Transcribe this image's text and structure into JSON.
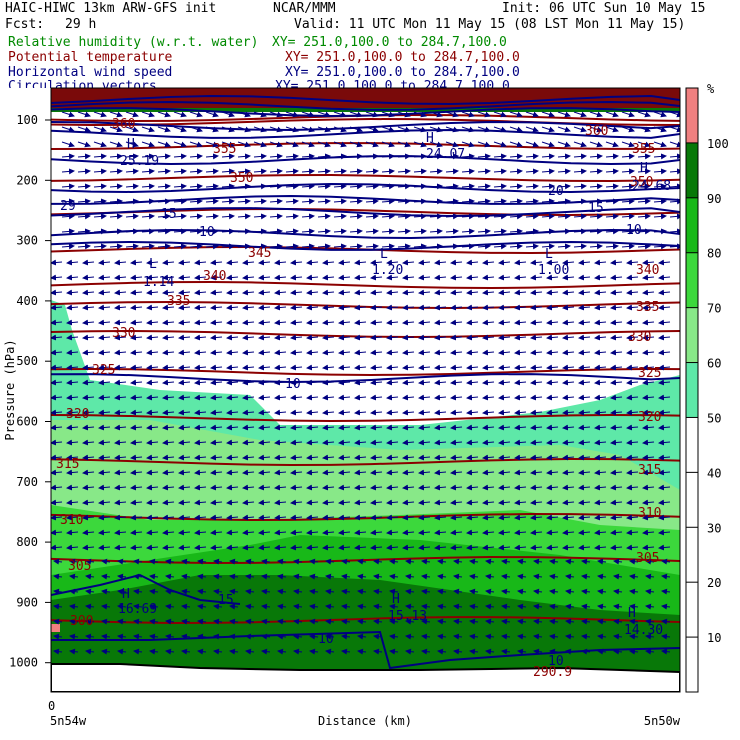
{
  "header": {
    "model": "HAIC-HIWC 13km ARW-GFS init",
    "center": "NCAR/MMM",
    "init": "Init: 06 UTC Sun 10 May 15",
    "fcst_label": "Fcst:",
    "fcst_value": "29 h",
    "valid": "Valid: 11 UTC Mon 11 May 15 (08 LST Mon 11 May 15)"
  },
  "fields": [
    {
      "name": "Relative humidity (w.r.t. water)",
      "xy": "XY= 251.0,100.0 to 284.7,100.0",
      "color": "#008a00"
    },
    {
      "name": "Potential temperature",
      "xy": "XY= 251.0,100.0 to 284.7,100.0",
      "color": "#8b0000"
    },
    {
      "name": "Horizontal wind speed",
      "xy": "XY= 251.0,100.0 to 284.7,100.0",
      "color": "#000080"
    },
    {
      "name": "Circulation vectors",
      "xy": "XY= 251.0,100.0 to 284.7,100.0",
      "color": "#000080"
    }
  ],
  "chart_data": {
    "type": "heatmap",
    "ylabel": "Pressure (hPa)",
    "xlabel": "Distance (km)",
    "x_origin_label": "0",
    "x_left_label": "5n54w",
    "x_right_label": "5n50w",
    "y_ticks": [
      100,
      200,
      300,
      400,
      500,
      600,
      700,
      800,
      900,
      1000
    ],
    "ylim": [
      1000,
      75
    ],
    "colorbar": {
      "unit": "%",
      "ticks": [
        10,
        20,
        30,
        40,
        50,
        60,
        70,
        80,
        90,
        100
      ],
      "levels": [
        {
          "from": 50,
          "to": 60,
          "color": "#5ee8a8"
        },
        {
          "from": 60,
          "to": 70,
          "color": "#88e888"
        },
        {
          "from": 70,
          "to": 80,
          "color": "#3cd83c"
        },
        {
          "from": 80,
          "to": 90,
          "color": "#18b818"
        },
        {
          "from": 90,
          "to": 100,
          "color": "#087808"
        },
        {
          "from": 100,
          "to": 110,
          "color": "#f08080"
        }
      ]
    },
    "theta_labels": [
      "360",
      "355",
      "350",
      "345",
      "340",
      "335",
      "330",
      "325",
      "320",
      "315",
      "310",
      "305",
      "300"
    ],
    "wind_labels": [
      "29",
      "20",
      "15",
      "10"
    ],
    "extrema_labels": [
      {
        "letter": "H",
        "value": "25.19"
      },
      {
        "letter": "H",
        "value": "24.07"
      },
      {
        "letter": "H",
        "value": "24.68"
      },
      {
        "letter": "L",
        "value": "1.14"
      },
      {
        "letter": "L",
        "value": "1.20"
      },
      {
        "letter": "L",
        "value": "1.00"
      },
      {
        "letter": "H",
        "value": "16.69"
      },
      {
        "letter": "H",
        "value": "15.13"
      },
      {
        "letter": "H",
        "value": "14.30"
      }
    ],
    "surface_label": "290.9"
  }
}
